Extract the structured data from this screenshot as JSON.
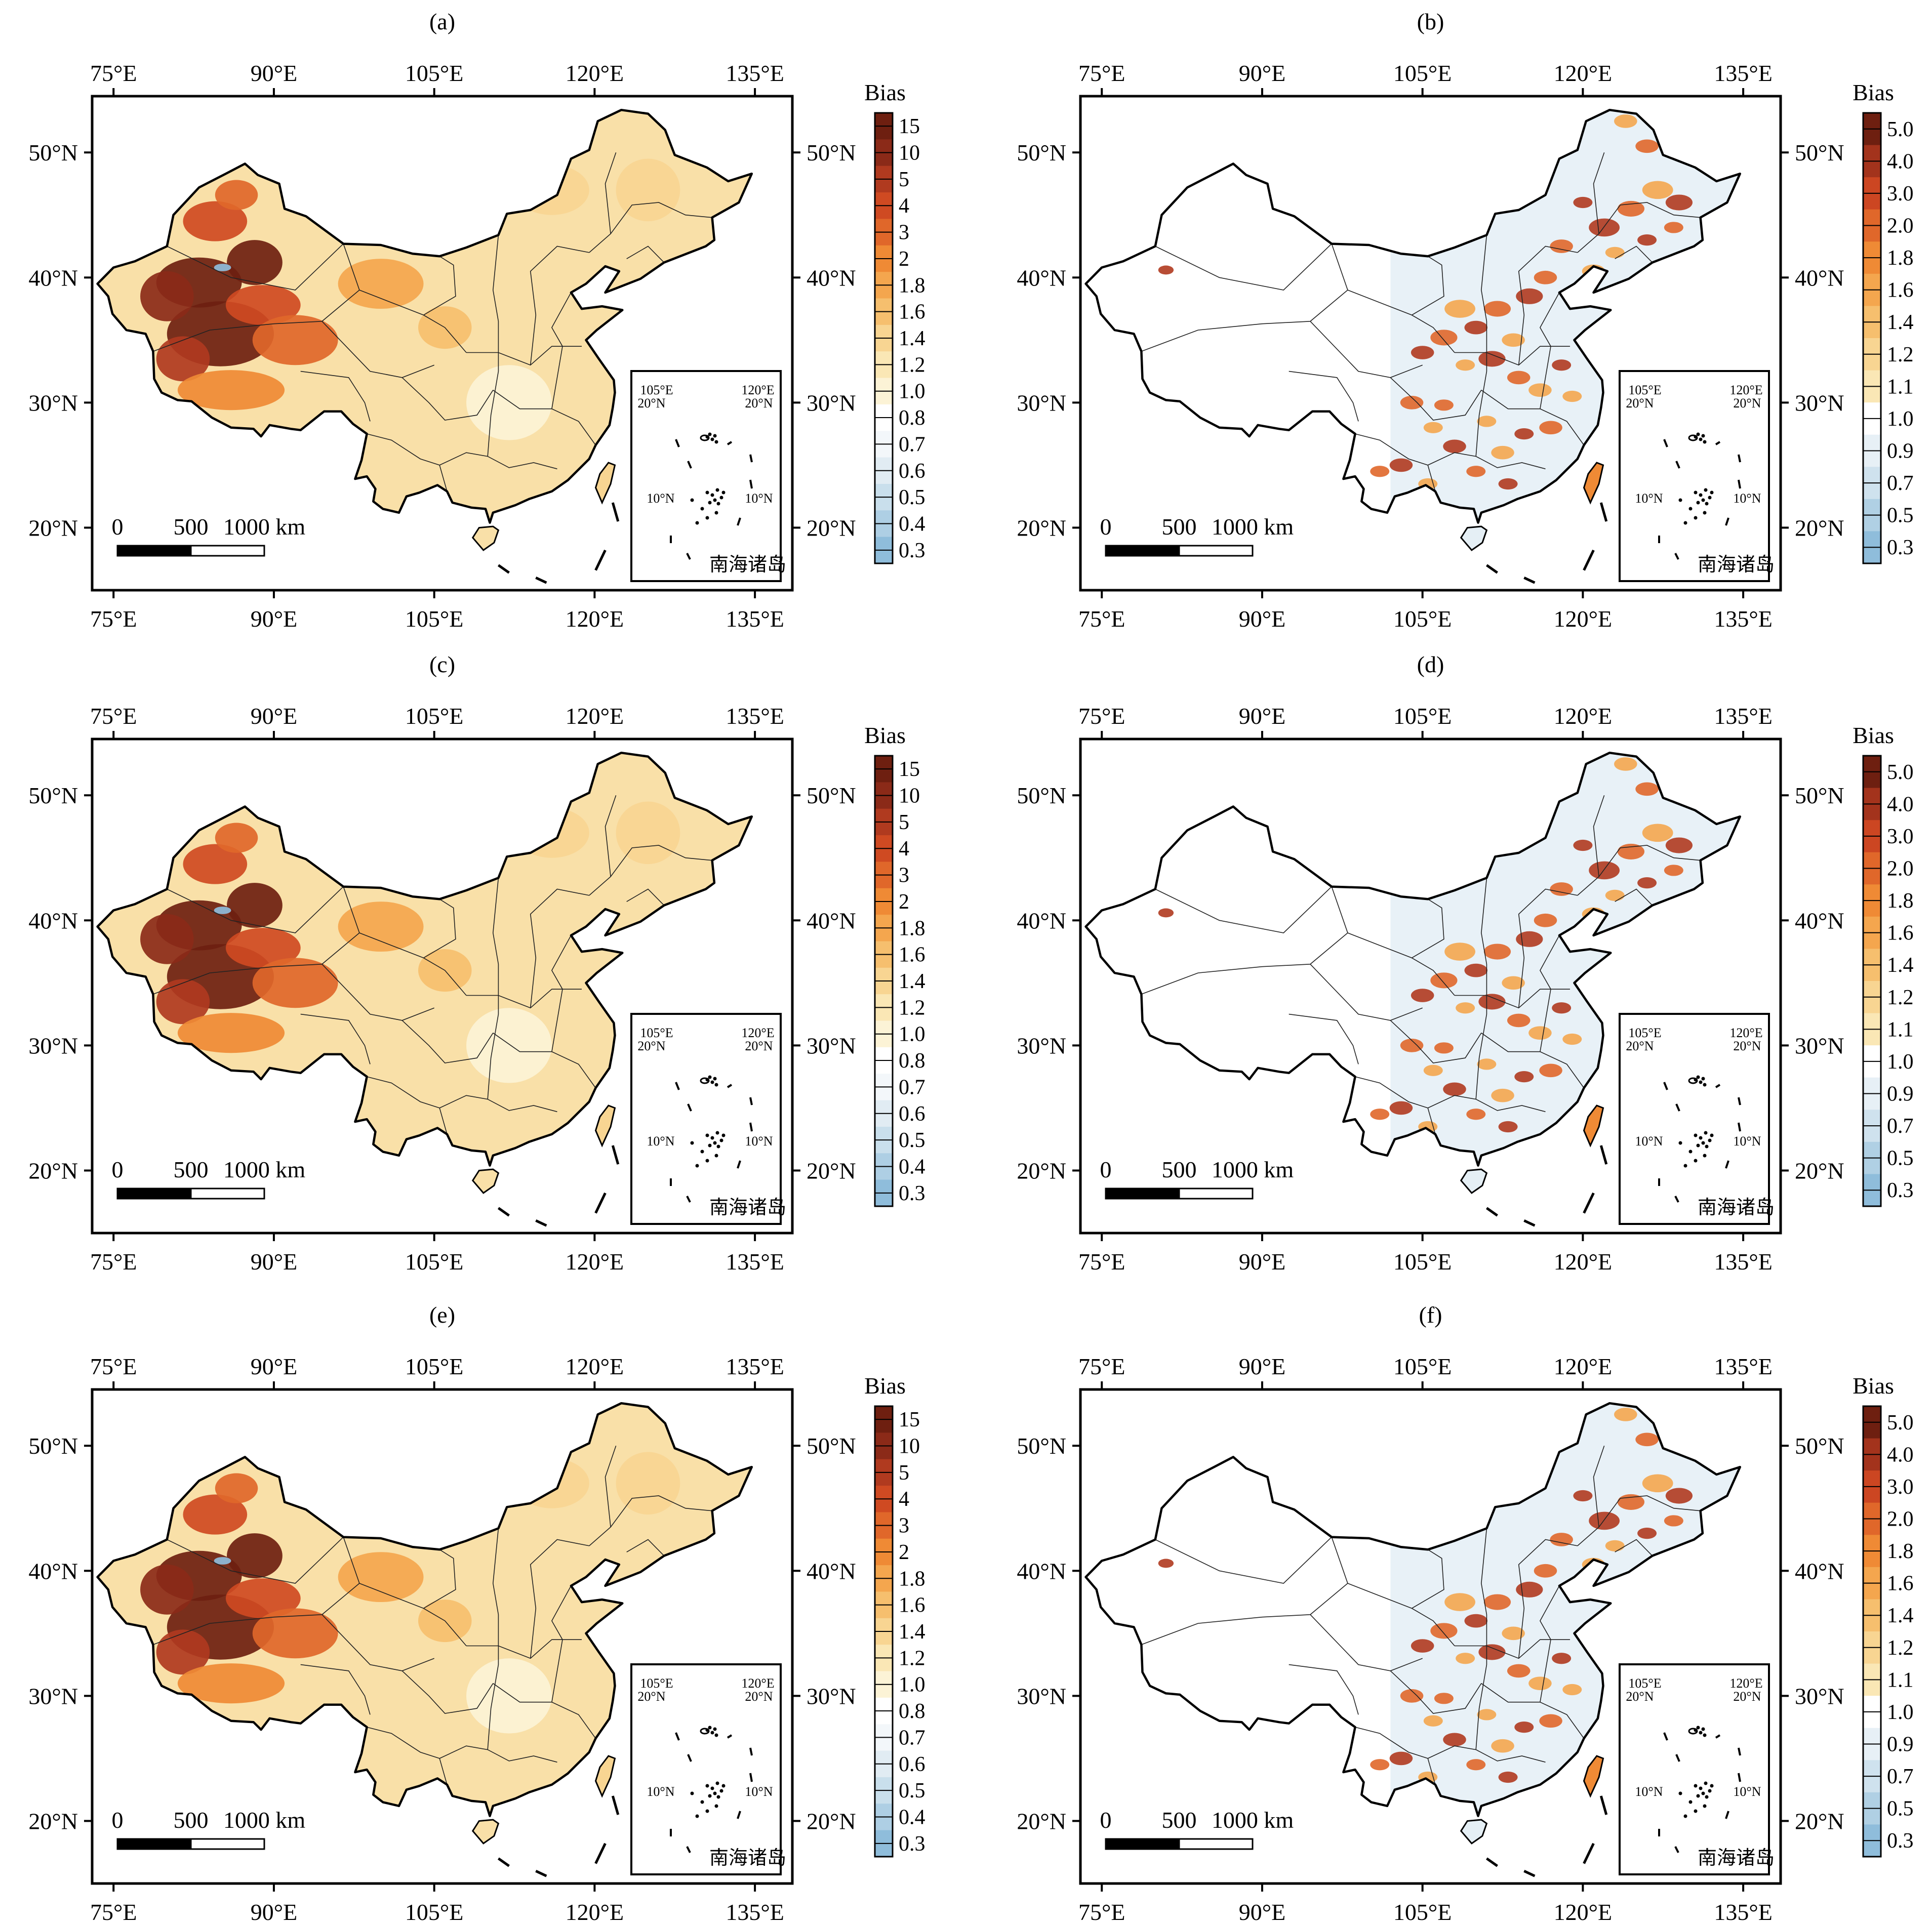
{
  "figure": {
    "panels": [
      {
        "label": "(a)",
        "scale": "wide"
      },
      {
        "label": "(b)",
        "scale": "narrow"
      },
      {
        "label": "(c)",
        "scale": "wide"
      },
      {
        "label": "(d)",
        "scale": "narrow"
      },
      {
        "label": "(e)",
        "scale": "wide"
      },
      {
        "label": "(f)",
        "scale": "narrow"
      }
    ],
    "lon_ticks": [
      "75°E",
      "90°E",
      "105°E",
      "120°E",
      "135°E"
    ],
    "lat_ticks": [
      "50°N",
      "40°N",
      "30°N",
      "20°N"
    ],
    "scale_bar": {
      "labels": [
        "0",
        "500",
        "1000 km"
      ]
    },
    "inset": {
      "title": "南海诸岛",
      "lon_labels": [
        "105°E",
        "120°E"
      ],
      "lat_labels": [
        "20°N",
        "20°N",
        "10°N",
        "10°N"
      ]
    },
    "colorbar": {
      "title": "Bias",
      "wide_scale": {
        "labels": [
          "15",
          "10",
          "5",
          "4",
          "3",
          "2",
          "1.8",
          "1.6",
          "1.4",
          "1.2",
          "1.0",
          "0.8",
          "0.7",
          "0.6",
          "0.5",
          "0.4",
          "0.3"
        ],
        "colors": [
          "#6e1f10",
          "#8b2a18",
          "#b03a1f",
          "#cf4a22",
          "#e0672a",
          "#ef8a35",
          "#f4a64e",
          "#f6bf6e",
          "#f8d592",
          "#fae7b5",
          "#fcf3d6",
          "#ffffff",
          "#f3f7fa",
          "#e1ecf3",
          "#c9dfec",
          "#aecfe4",
          "#8fbddb"
        ]
      },
      "narrow_scale": {
        "labels": [
          "5.0",
          "4.0",
          "3.0",
          "2.0",
          "1.8",
          "1.6",
          "1.4",
          "1.2",
          "1.1",
          "1.0",
          "0.9",
          "0.7",
          "0.5",
          "0.3"
        ],
        "colors": [
          "#6e1f10",
          "#a3331c",
          "#cc4622",
          "#e0672a",
          "#ef8a35",
          "#f4a64e",
          "#f6bf6e",
          "#f8d592",
          "#fae7b5",
          "#ffffff",
          "#e7f0f6",
          "#cfe2ee",
          "#b0d0e4",
          "#8fbddb"
        ]
      }
    }
  }
}
